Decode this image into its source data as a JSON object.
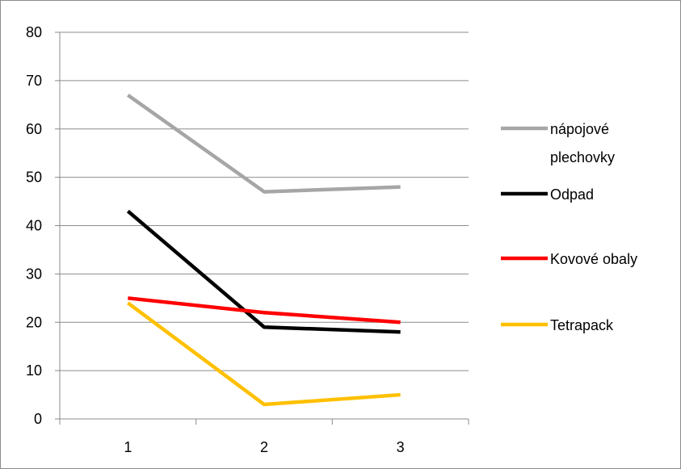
{
  "chart_data": {
    "type": "line",
    "title": "",
    "xlabel": "",
    "ylabel": "",
    "categories": [
      "1",
      "2",
      "3"
    ],
    "ylim": [
      0,
      80
    ],
    "yticks": [
      0,
      10,
      20,
      30,
      40,
      50,
      60,
      70,
      80
    ],
    "grid": "horizontal",
    "legend_position": "right",
    "series": [
      {
        "name": "nápojové plechovky",
        "legend_lines": [
          "nápojové",
          "plechovky"
        ],
        "color": "#a6a6a6",
        "values": [
          67,
          47,
          48
        ]
      },
      {
        "name": "Odpad",
        "legend_lines": [
          "Odpad"
        ],
        "color": "#000000",
        "values": [
          43,
          19,
          18
        ]
      },
      {
        "name": "Kovové obaly",
        "legend_lines": [
          "Kovové obaly"
        ],
        "color": "#ff0000",
        "values": [
          25,
          22,
          20
        ]
      },
      {
        "name": "Tetrapack",
        "legend_lines": [
          "Tetrapack"
        ],
        "color": "#ffc000",
        "values": [
          24,
          3,
          5
        ]
      }
    ]
  }
}
